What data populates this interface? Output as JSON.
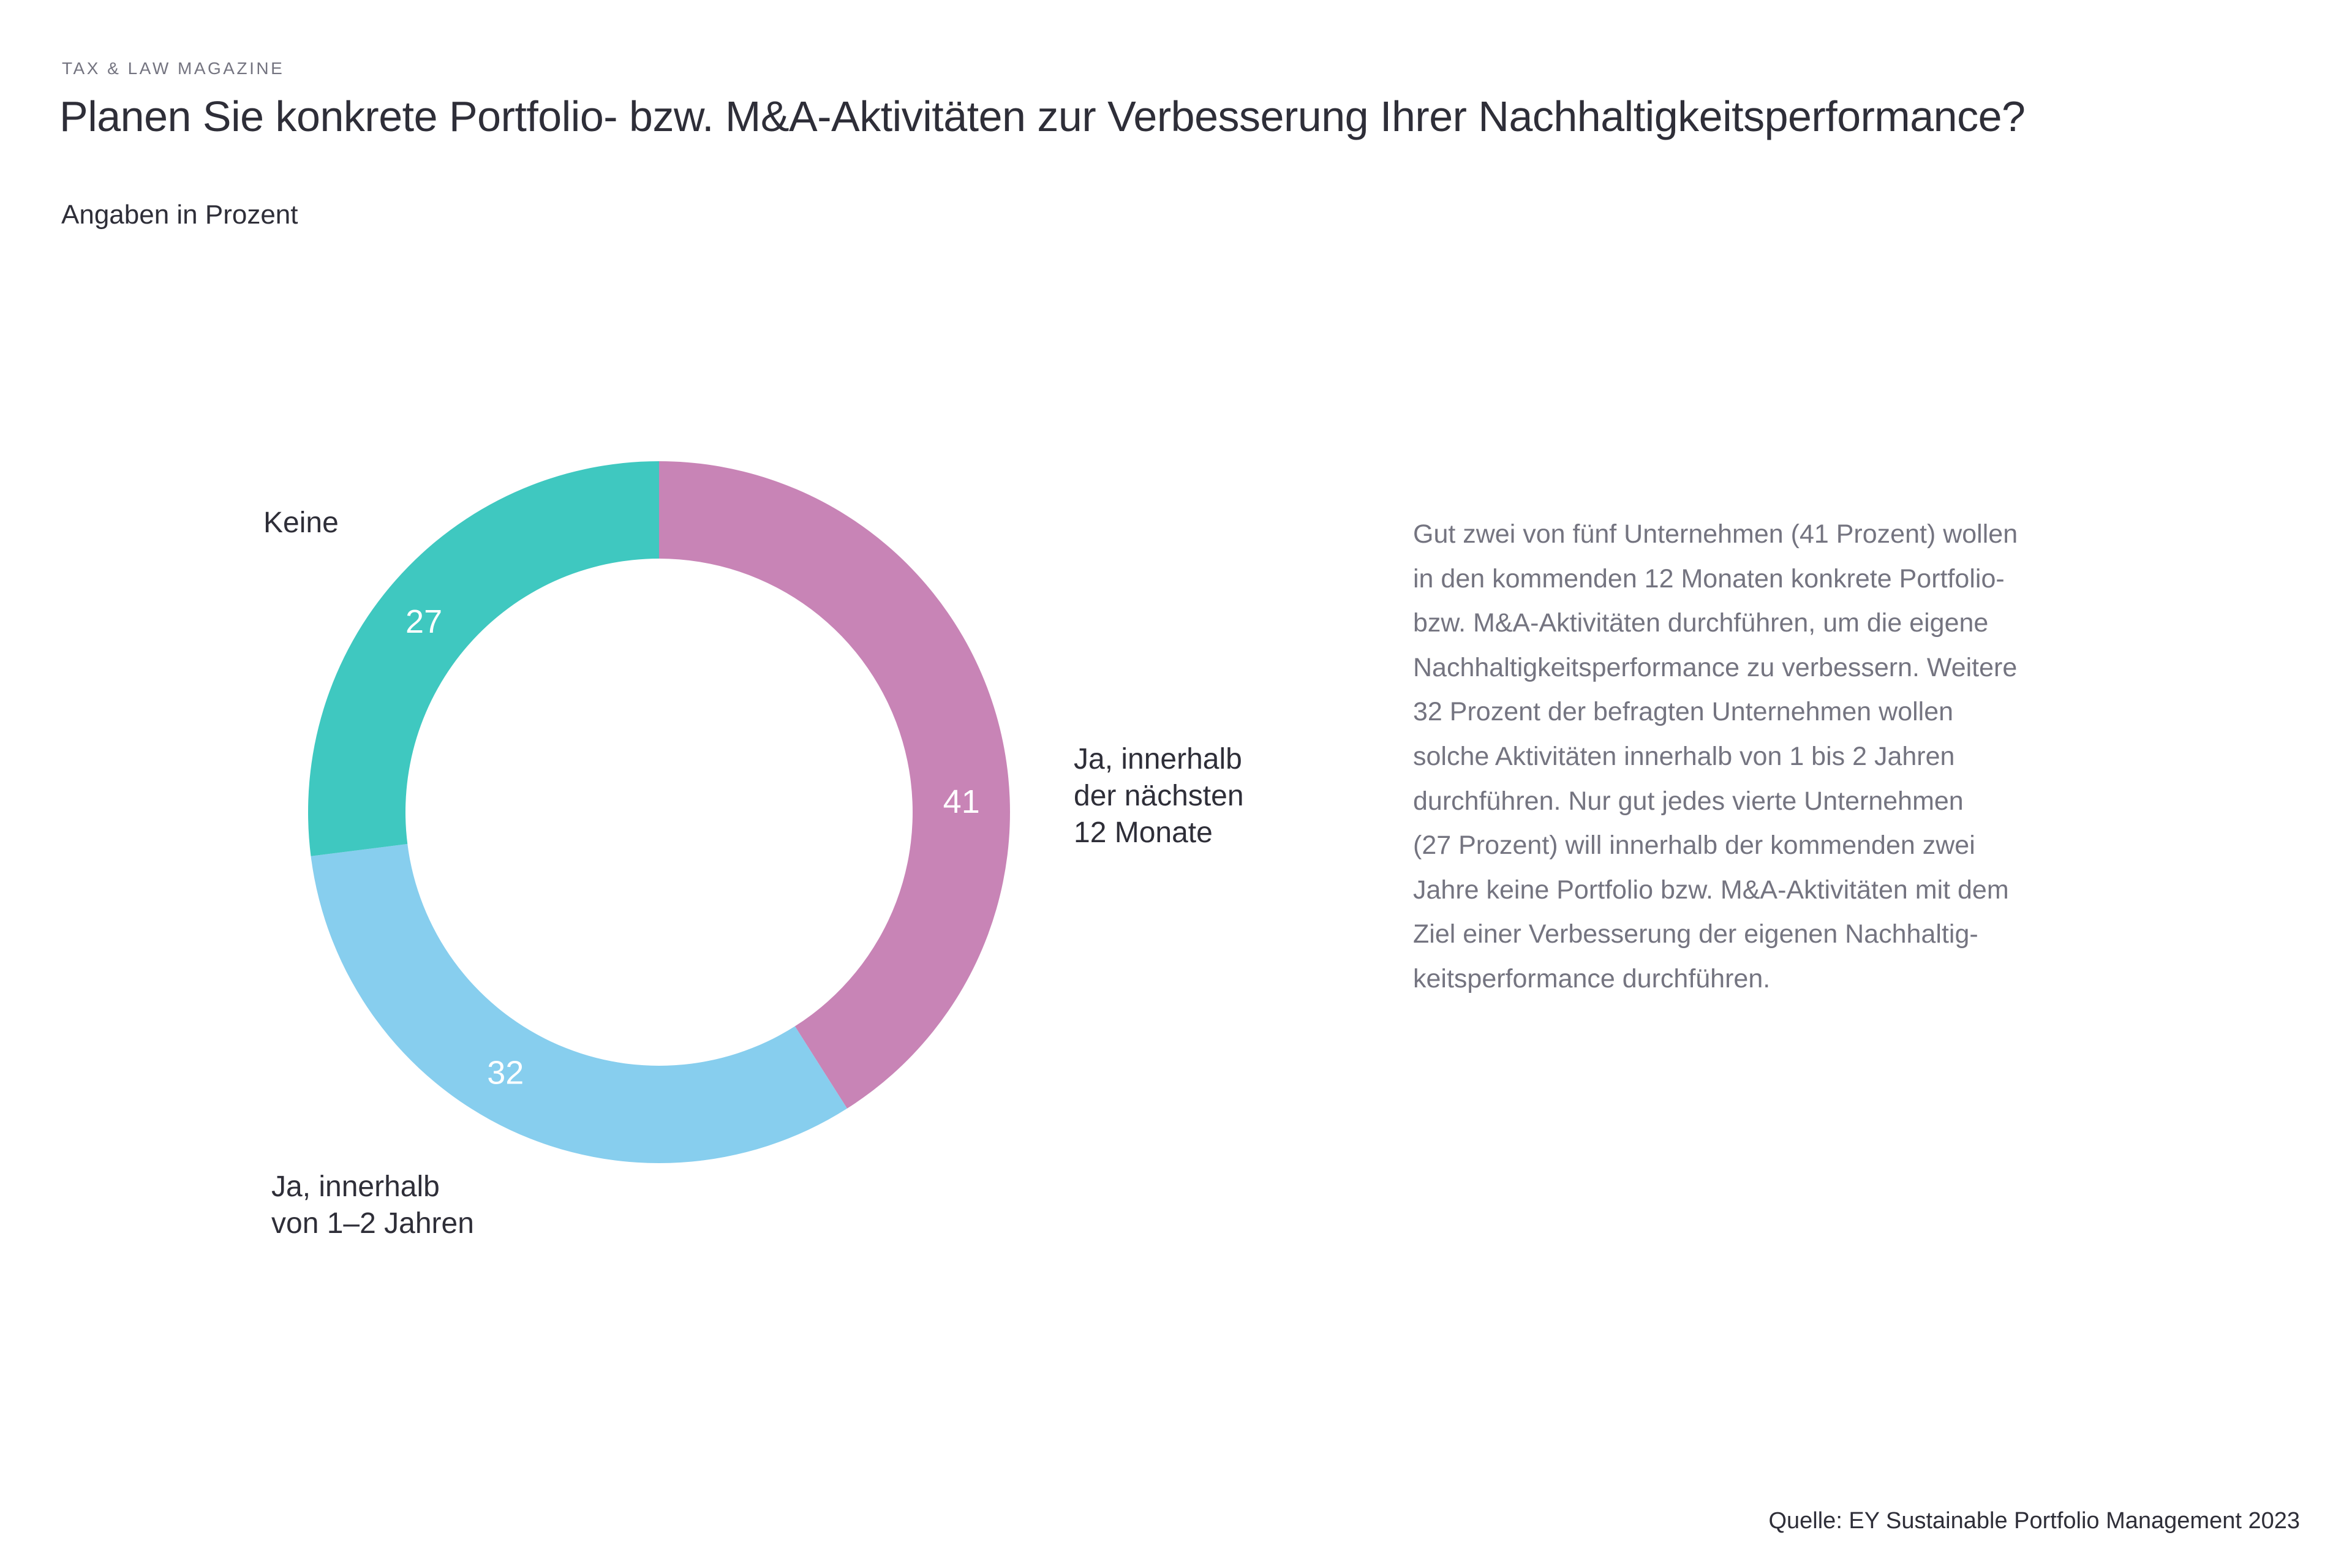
{
  "page": {
    "eyebrow": "TAX & LAW MAGAZINE",
    "title": "Planen Sie konkrete Portfolio- bzw. M&A-Aktivitäten zur Verbesserung Ihrer Nachhaltigkeitsperformance?",
    "subtitle": "Angaben in Prozent",
    "source": "Quelle: EY Sustainable Portfolio Management 2023"
  },
  "chart_data": {
    "type": "pie",
    "subtype": "donut",
    "title": "Planen Sie konkrete Portfolio- bzw. M&A-Aktivitäten zur Verbesserung Ihrer Nachhaltigkeitsperformance?",
    "unit": "Prozent",
    "start_angle_deg": 0,
    "direction": "clockwise",
    "values_shown_inside_ring": true,
    "background": "#ffffff",
    "segments": [
      {
        "label": "Ja, innerhalb der nächsten 12 Monate",
        "label_lines": [
          "Ja, innerhalb",
          "der nächsten",
          "12 Monate"
        ],
        "value": 41,
        "color": "#c884b6"
      },
      {
        "label": "Ja, innerhalb von 1–2 Jahren",
        "label_lines": [
          "Ja, innerhalb",
          "von 1–2 Jahren"
        ],
        "value": 32,
        "color": "#87ceee"
      },
      {
        "label": "Keine",
        "label_lines": [
          "Keine"
        ],
        "value": 27,
        "color": "#3fc8c0"
      }
    ],
    "value_label_color": "#ffffff"
  },
  "commentary": {
    "lines": [
      "Gut zwei von fünf Unternehmen (41 Prozent) wollen",
      "in den kommenden 12 Monaten konkrete Portfolio-",
      "bzw. M&A-Aktivitäten durchführen, um die eigene",
      "Nachhaltigkeitsperformance zu verbessern. Weitere",
      "32 Prozent der befragten Unternehmen wollen",
      "solche Aktivitäten innerhalb von 1 bis 2 Jahren",
      "durchführen. Nur gut jedes vierte Unternehmen",
      "(27 Prozent) will innerhalb der kommenden zwei",
      "Jahre keine Portfolio bzw. M&A-Aktivitäten mit dem",
      "Ziel einer Verbesserung der eigenen Nachhaltig-",
      "keitsperformance durchführen."
    ]
  },
  "colors": {
    "text_dark": "#2e2e38",
    "text_gray": "#747480",
    "segment_12_monate": "#c884b6",
    "segment_1_2_jahre": "#87ceee",
    "segment_keine": "#3fc8c0"
  }
}
